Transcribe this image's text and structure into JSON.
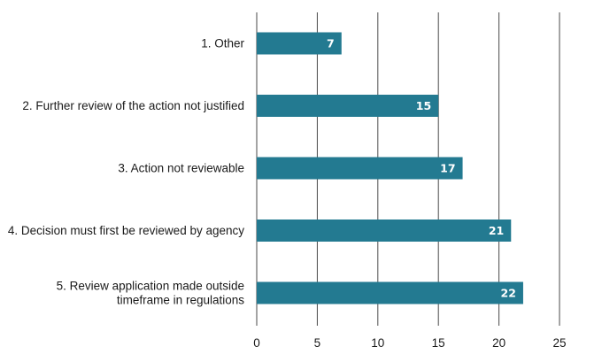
{
  "chart_data": {
    "type": "bar",
    "orientation": "horizontal",
    "categories": [
      [
        "1. Other"
      ],
      [
        "2. Further review of the action not justified"
      ],
      [
        "3. Action not reviewable"
      ],
      [
        "4. Decision must first be reviewed by agency"
      ],
      [
        "5. Review application made outside",
        "timeframe in regulations"
      ]
    ],
    "values": [
      7,
      15,
      17,
      21,
      22
    ],
    "xlim": [
      0,
      25
    ],
    "xticks": [
      0,
      5,
      10,
      15,
      20,
      25
    ],
    "grid": true,
    "data_labels": true,
    "bar_color": "#237a91",
    "title": "",
    "xlabel": "",
    "ylabel": ""
  }
}
